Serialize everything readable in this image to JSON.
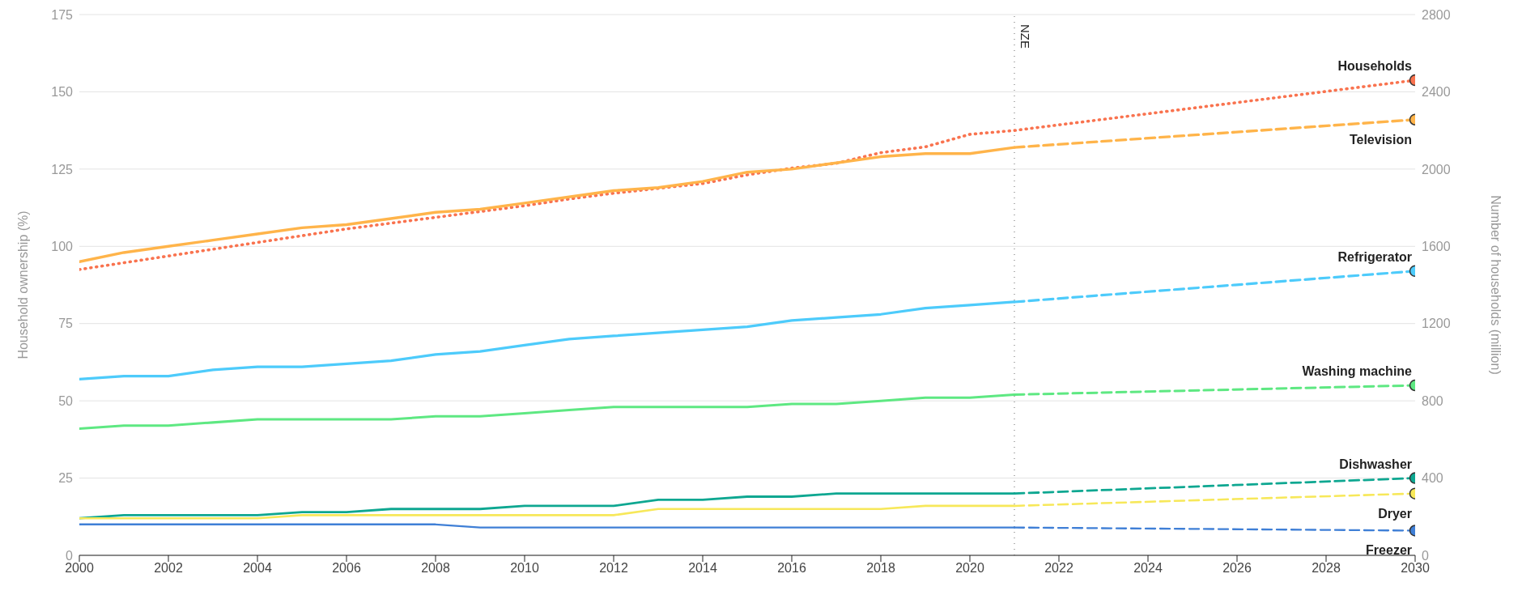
{
  "chart_data": {
    "type": "line",
    "ylabel": "Household ownership (%)",
    "y2label": "Number of households (million)",
    "xlim": [
      2000,
      2030
    ],
    "xticks": [
      2000,
      2002,
      2004,
      2006,
      2008,
      2010,
      2012,
      2014,
      2016,
      2018,
      2020,
      2022,
      2024,
      2026,
      2028,
      2030
    ],
    "ylim": [
      0,
      175
    ],
    "yticks": [
      0,
      25,
      50,
      75,
      100,
      125,
      150,
      175
    ],
    "y2lim": [
      0,
      2800
    ],
    "y2ticks": [
      0,
      400,
      800,
      1200,
      1600,
      2000,
      2400,
      2800
    ],
    "grid": "y",
    "legend": false,
    "ref_lines": [
      {
        "axis": "x",
        "value": 2021,
        "label": "NZE",
        "color": "#999999",
        "line_style": "dotted"
      }
    ],
    "series": [
      {
        "axis": "y2",
        "color": "#f9734f",
        "line_style": "dotted",
        "marker": "none",
        "x": [
          2000,
          2001,
          2002,
          2003,
          2004,
          2005,
          2006,
          2007,
          2008,
          2009,
          2010,
          2011,
          2012,
          2013,
          2014,
          2015,
          2016,
          2017,
          2018,
          2019,
          2020,
          2021,
          2030
        ],
        "values": [
          1480,
          1515,
          1550,
          1585,
          1620,
          1655,
          1690,
          1720,
          1750,
          1780,
          1810,
          1845,
          1875,
          1900,
          1925,
          1970,
          2005,
          2030,
          2085,
          2115,
          2180,
          2200,
          2460
        ]
      },
      {
        "type": "scatter",
        "axis": "y2",
        "name": "Households",
        "color": "#f9734f",
        "marker": "circle",
        "x": [
          2030
        ],
        "values": [
          2460
        ]
      },
      {
        "color": "#ffb44a",
        "line_style": "solid",
        "marker": "none",
        "x": [
          2000,
          2001,
          2002,
          2003,
          2004,
          2005,
          2006,
          2007,
          2008,
          2009,
          2010,
          2011,
          2012,
          2013,
          2014,
          2015,
          2016,
          2017,
          2018,
          2019,
          2020,
          2021
        ],
        "values": [
          95,
          98,
          100,
          102,
          104,
          106,
          107,
          109,
          111,
          112,
          114,
          116,
          118,
          119,
          121,
          124,
          125,
          127,
          129,
          130,
          130,
          132
        ]
      },
      {
        "color": "#ffb44a",
        "line_style": "dashed",
        "marker": "none",
        "x": [
          2021,
          2030
        ],
        "values": [
          132,
          141
        ]
      },
      {
        "type": "scatter",
        "name": "Television",
        "color": "#ffb44a",
        "marker": "circle",
        "x": [
          2030
        ],
        "values": [
          141
        ]
      },
      {
        "color": "#4dcbfb",
        "line_style": "solid",
        "marker": "none",
        "x": [
          2000,
          2001,
          2002,
          2003,
          2004,
          2005,
          2006,
          2007,
          2008,
          2009,
          2010,
          2011,
          2012,
          2013,
          2014,
          2015,
          2016,
          2017,
          2018,
          2019,
          2020,
          2021
        ],
        "values": [
          57,
          58,
          58,
          60,
          61,
          61,
          62,
          63,
          65,
          66,
          68,
          70,
          71,
          72,
          73,
          74,
          76,
          77,
          78,
          80,
          81,
          82
        ]
      },
      {
        "color": "#4dcbfb",
        "line_style": "dashed",
        "marker": "none",
        "x": [
          2021,
          2030
        ],
        "values": [
          82,
          92
        ]
      },
      {
        "type": "scatter",
        "name": "Refrigerator",
        "color": "#4dcbfb",
        "marker": "circle",
        "x": [
          2030
        ],
        "values": [
          92
        ]
      },
      {
        "color": "#5ee882",
        "line_style": "solid",
        "marker": "none",
        "x": [
          2000,
          2001,
          2002,
          2003,
          2004,
          2005,
          2006,
          2007,
          2008,
          2009,
          2010,
          2011,
          2012,
          2013,
          2014,
          2015,
          2016,
          2017,
          2018,
          2019,
          2020,
          2021
        ],
        "values": [
          41,
          42,
          42,
          43,
          44,
          44,
          44,
          44,
          45,
          45,
          46,
          47,
          48,
          48,
          48,
          48,
          49,
          49,
          50,
          51,
          51,
          52
        ]
      },
      {
        "color": "#5ee882",
        "line_style": "dashed",
        "marker": "none",
        "x": [
          2021,
          2030
        ],
        "values": [
          52,
          55
        ]
      },
      {
        "type": "scatter",
        "name": "Washing machine",
        "color": "#5ee882",
        "marker": "circle",
        "x": [
          2030
        ],
        "values": [
          55
        ]
      },
      {
        "color": "#0ea791",
        "line_style": "solid",
        "marker": "none",
        "x": [
          2000,
          2001,
          2002,
          2003,
          2004,
          2005,
          2006,
          2007,
          2008,
          2009,
          2010,
          2011,
          2012,
          2013,
          2014,
          2015,
          2016,
          2017,
          2018,
          2019,
          2020,
          2021
        ],
        "values": [
          12,
          13,
          13,
          13,
          13,
          14,
          14,
          15,
          15,
          15,
          16,
          16,
          16,
          18,
          18,
          19,
          19,
          20,
          20,
          20,
          20,
          20
        ]
      },
      {
        "color": "#0ea791",
        "line_style": "dashed",
        "marker": "none",
        "x": [
          2021,
          2030
        ],
        "values": [
          20,
          25
        ]
      },
      {
        "type": "scatter",
        "name": "Dishwasher",
        "color": "#0ea791",
        "marker": "circle",
        "x": [
          2030
        ],
        "values": [
          25
        ]
      },
      {
        "color": "#f7e85a",
        "line_style": "solid",
        "marker": "none",
        "x": [
          2000,
          2001,
          2002,
          2003,
          2004,
          2005,
          2006,
          2007,
          2008,
          2009,
          2010,
          2011,
          2012,
          2013,
          2014,
          2015,
          2016,
          2017,
          2018,
          2019,
          2020,
          2021
        ],
        "values": [
          12,
          12,
          12,
          12,
          12,
          13,
          13,
          13,
          13,
          13,
          13,
          13,
          13,
          15,
          15,
          15,
          15,
          15,
          15,
          16,
          16,
          16
        ]
      },
      {
        "color": "#f7e85a",
        "line_style": "dashed",
        "marker": "none",
        "x": [
          2021,
          2030
        ],
        "values": [
          16,
          20
        ]
      },
      {
        "type": "scatter",
        "name": "Dryer",
        "color": "#f7e85a",
        "marker": "circle",
        "x": [
          2030
        ],
        "values": [
          20
        ]
      },
      {
        "color": "#3f7fd6",
        "line_style": "solid",
        "marker": "none",
        "x": [
          2000,
          2001,
          2002,
          2003,
          2004,
          2005,
          2006,
          2007,
          2008,
          2009,
          2010,
          2011,
          2012,
          2013,
          2014,
          2015,
          2016,
          2017,
          2018,
          2019,
          2020,
          2021
        ],
        "values": [
          10,
          10,
          10,
          10,
          10,
          10,
          10,
          10,
          10,
          9,
          9,
          9,
          9,
          9,
          9,
          9,
          9,
          9,
          9,
          9,
          9,
          9
        ]
      },
      {
        "color": "#3f7fd6",
        "line_style": "dashed",
        "marker": "none",
        "x": [
          2021,
          2030
        ],
        "values": [
          9,
          8
        ]
      },
      {
        "type": "scatter",
        "name": "Freezer",
        "color": "#3f7fd6",
        "marker": "circle",
        "x": [
          2030
        ],
        "values": [
          8
        ]
      }
    ]
  }
}
